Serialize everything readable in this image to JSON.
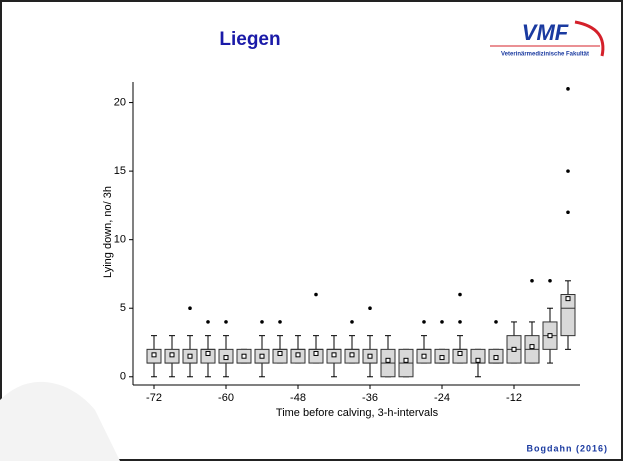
{
  "header": {
    "title": "Liegen",
    "logo": "VMF",
    "logo_subtitle": "Veterinärmedizinische Fakultät"
  },
  "footer": "Bogdahn (2016)",
  "chart_data": {
    "type": "box",
    "x_label": "Time before calving, 3-h-intervals",
    "y_label": "Lying down, no/ 3h",
    "x": [
      -72,
      -69,
      -66,
      -63,
      -60,
      -57,
      -54,
      -51,
      -48,
      -45,
      -42,
      -39,
      -36,
      -33,
      -30,
      -27,
      -24,
      -21,
      -18,
      -15,
      -12,
      -9,
      -6,
      -3
    ],
    "boxes": [
      {
        "whislo": 0,
        "q1": 1,
        "med": 1,
        "q3": 2,
        "whishi": 3,
        "mean": 1.6,
        "fliers": []
      },
      {
        "whislo": 0,
        "q1": 1,
        "med": 1,
        "q3": 2,
        "whishi": 3,
        "mean": 1.6,
        "fliers": []
      },
      {
        "whislo": 0,
        "q1": 1,
        "med": 1,
        "q3": 2,
        "whishi": 3,
        "mean": 1.5,
        "fliers": [
          5
        ]
      },
      {
        "whislo": 0,
        "q1": 1,
        "med": 2,
        "q3": 2,
        "whishi": 3,
        "mean": 1.7,
        "fliers": [
          4
        ]
      },
      {
        "whislo": 0,
        "q1": 1,
        "med": 1,
        "q3": 2,
        "whishi": 3,
        "mean": 1.4,
        "fliers": [
          4
        ]
      },
      {
        "whislo": 1,
        "q1": 1,
        "med": 1,
        "q3": 2,
        "whishi": 2,
        "mean": 1.5,
        "fliers": []
      },
      {
        "whislo": 0,
        "q1": 1,
        "med": 1,
        "q3": 2,
        "whishi": 3,
        "mean": 1.5,
        "fliers": [
          4
        ]
      },
      {
        "whislo": 1,
        "q1": 1,
        "med": 2,
        "q3": 2,
        "whishi": 3,
        "mean": 1.7,
        "fliers": [
          4
        ]
      },
      {
        "whislo": 1,
        "q1": 1,
        "med": 2,
        "q3": 2,
        "whishi": 3,
        "mean": 1.6,
        "fliers": []
      },
      {
        "whislo": 1,
        "q1": 1,
        "med": 2,
        "q3": 2,
        "whishi": 3,
        "mean": 1.7,
        "fliers": [
          6
        ]
      },
      {
        "whislo": 0,
        "q1": 1,
        "med": 2,
        "q3": 2,
        "whishi": 3,
        "mean": 1.6,
        "fliers": []
      },
      {
        "whislo": 1,
        "q1": 1,
        "med": 2,
        "q3": 2,
        "whishi": 3,
        "mean": 1.6,
        "fliers": [
          4
        ]
      },
      {
        "whislo": 0,
        "q1": 1,
        "med": 1,
        "q3": 2,
        "whishi": 3,
        "mean": 1.5,
        "fliers": [
          5
        ]
      },
      {
        "whislo": 0,
        "q1": 0,
        "med": 1,
        "q3": 2,
        "whishi": 3,
        "mean": 1.2,
        "fliers": []
      },
      {
        "whislo": 0,
        "q1": 0,
        "med": 1,
        "q3": 2,
        "whishi": 2,
        "mean": 1.2,
        "fliers": []
      },
      {
        "whislo": 1,
        "q1": 1,
        "med": 2,
        "q3": 2,
        "whishi": 3,
        "mean": 1.5,
        "fliers": [
          4
        ]
      },
      {
        "whislo": 1,
        "q1": 1,
        "med": 1,
        "q3": 2,
        "whishi": 2,
        "mean": 1.4,
        "fliers": [
          4
        ]
      },
      {
        "whislo": 1,
        "q1": 1,
        "med": 2,
        "q3": 2,
        "whishi": 3,
        "mean": 1.7,
        "fliers": [
          4,
          6
        ]
      },
      {
        "whislo": 0,
        "q1": 1,
        "med": 1,
        "q3": 2,
        "whishi": 2,
        "mean": 1.2,
        "fliers": []
      },
      {
        "whislo": 1,
        "q1": 1,
        "med": 1,
        "q3": 2,
        "whishi": 2,
        "mean": 1.4,
        "fliers": [
          4
        ]
      },
      {
        "whislo": 1,
        "q1": 1,
        "med": 2,
        "q3": 3,
        "whishi": 4,
        "mean": 2.0,
        "fliers": []
      },
      {
        "whislo": 1,
        "q1": 1,
        "med": 2,
        "q3": 3,
        "whishi": 4,
        "mean": 2.2,
        "fliers": [
          7
        ]
      },
      {
        "whislo": 1,
        "q1": 2,
        "med": 3,
        "q3": 4,
        "whishi": 5,
        "mean": 3.0,
        "fliers": [
          7
        ]
      },
      {
        "whislo": 2,
        "q1": 3,
        "med": 5,
        "q3": 6,
        "whishi": 7,
        "mean": 5.7,
        "fliers": [
          12,
          15,
          21
        ]
      }
    ],
    "box_color": "#d9d9d9",
    "xlim": [
      -75.5,
      -1
    ],
    "ylim": [
      -0.6,
      21.5
    ],
    "xticks": [
      -72,
      -60,
      -48,
      -36,
      -24,
      -12
    ],
    "yticks": [
      0,
      5,
      10,
      15,
      20
    ]
  }
}
